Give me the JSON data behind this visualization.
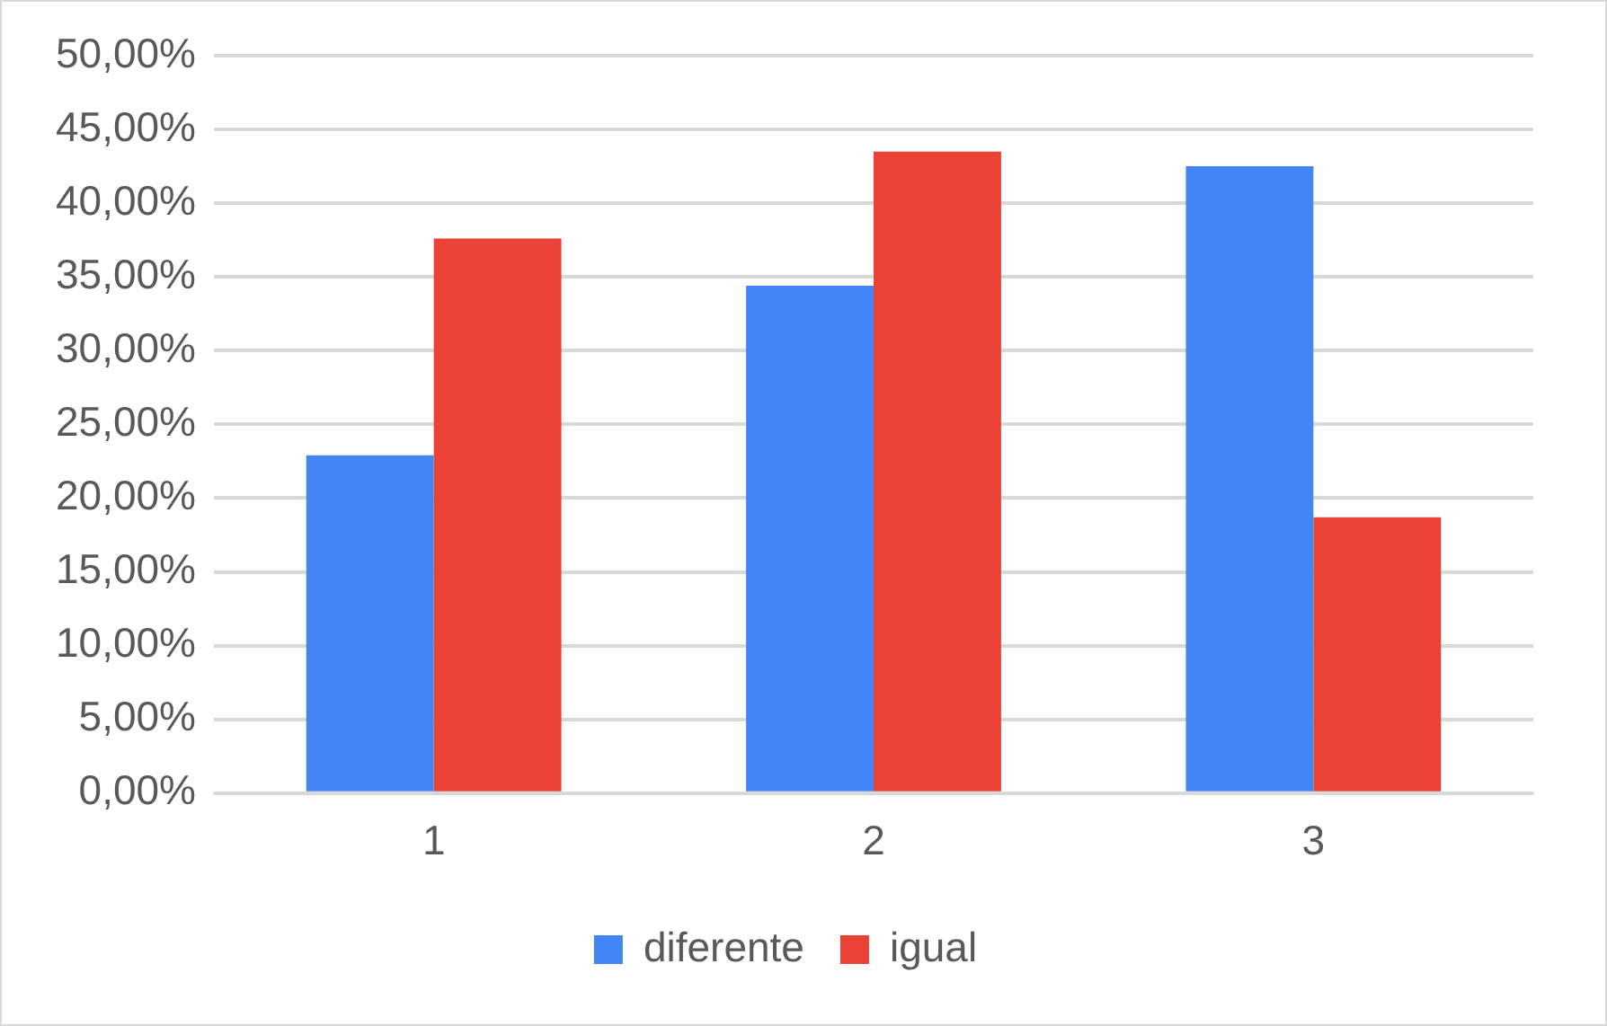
{
  "chart_data": {
    "type": "bar",
    "categories": [
      "1",
      "2",
      "3"
    ],
    "series": [
      {
        "name": "diferente",
        "color": "#4285f4",
        "values": [
          22.9,
          34.4,
          42.5
        ]
      },
      {
        "name": "igual",
        "color": "#ea4335",
        "values": [
          37.6,
          43.5,
          18.7
        ]
      }
    ],
    "ylim": [
      0,
      50
    ],
    "yticks": [
      {
        "value": 0,
        "label": "0,00%"
      },
      {
        "value": 5,
        "label": "5,00%"
      },
      {
        "value": 10,
        "label": "10,00%"
      },
      {
        "value": 15,
        "label": "15,00%"
      },
      {
        "value": 20,
        "label": "20,00%"
      },
      {
        "value": 25,
        "label": "25,00%"
      },
      {
        "value": 30,
        "label": "30,00%"
      },
      {
        "value": 35,
        "label": "35,00%"
      },
      {
        "value": 40,
        "label": "40,00%"
      },
      {
        "value": 45,
        "label": "45,00%"
      },
      {
        "value": 50,
        "label": "50,00%"
      }
    ],
    "grid": "y",
    "legend": "bottom"
  }
}
